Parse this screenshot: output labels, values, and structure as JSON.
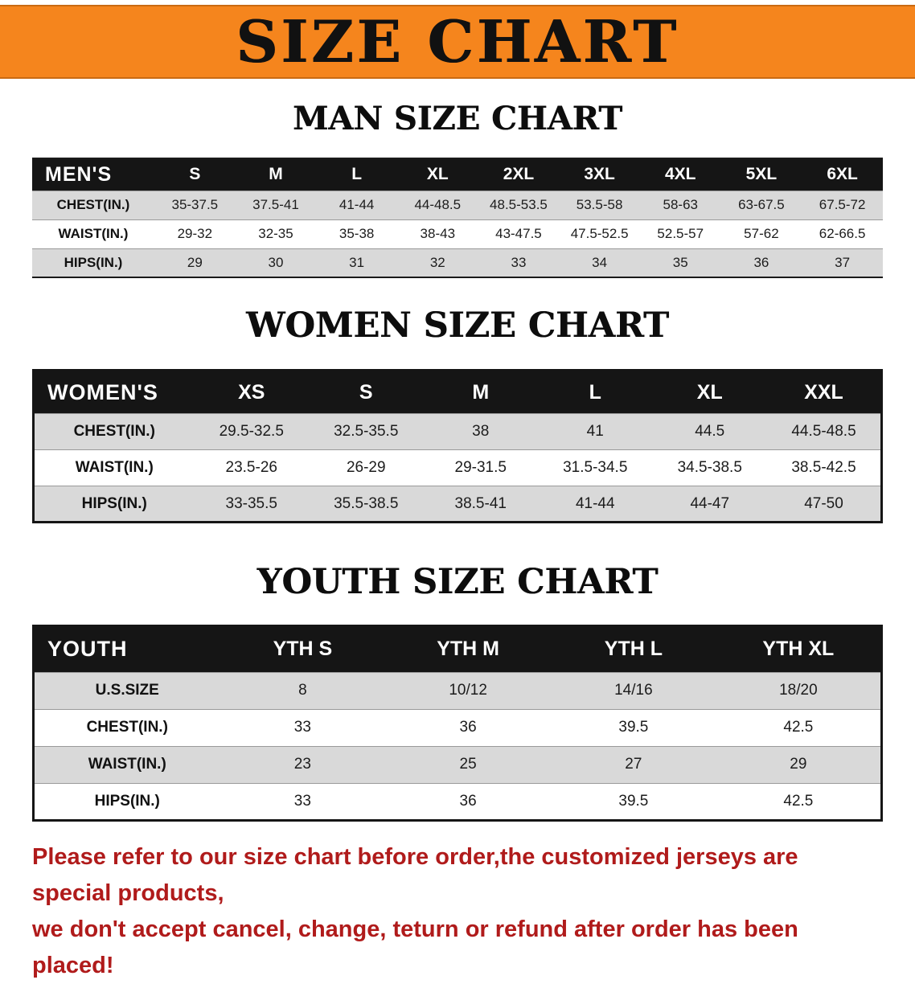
{
  "banner": {
    "title": "SIZE CHART"
  },
  "men": {
    "heading": "MAN SIZE CHART",
    "table": {
      "header": [
        "MEN'S",
        "S",
        "M",
        "L",
        "XL",
        "2XL",
        "3XL",
        "4XL",
        "5XL",
        "6XL"
      ],
      "rows": [
        [
          "CHEST(IN.)",
          "35-37.5",
          "37.5-41",
          "41-44",
          "44-48.5",
          "48.5-53.5",
          "53.5-58",
          "58-63",
          "63-67.5",
          "67.5-72"
        ],
        [
          "WAIST(IN.)",
          "29-32",
          "32-35",
          "35-38",
          "38-43",
          "43-47.5",
          "47.5-52.5",
          "52.5-57",
          "57-62",
          "62-66.5"
        ],
        [
          "HIPS(IN.)",
          "29",
          "30",
          "31",
          "32",
          "33",
          "34",
          "35",
          "36",
          "37"
        ]
      ]
    }
  },
  "women": {
    "heading": "WOMEN SIZE CHART",
    "table": {
      "header": [
        "WOMEN'S",
        "XS",
        "S",
        "M",
        "L",
        "XL",
        "XXL"
      ],
      "rows": [
        [
          "CHEST(IN.)",
          "29.5-32.5",
          "32.5-35.5",
          "38",
          "41",
          "44.5",
          "44.5-48.5"
        ],
        [
          "WAIST(IN.)",
          "23.5-26",
          "26-29",
          "29-31.5",
          "31.5-34.5",
          "34.5-38.5",
          "38.5-42.5"
        ],
        [
          "HIPS(IN.)",
          "33-35.5",
          "35.5-38.5",
          "38.5-41",
          "41-44",
          "44-47",
          "47-50"
        ]
      ]
    }
  },
  "youth": {
    "heading": "YOUTH SIZE CHART",
    "table": {
      "header": [
        "YOUTH",
        "YTH S",
        "YTH M",
        "YTH L",
        "YTH XL"
      ],
      "rows": [
        [
          "U.S.SIZE",
          "8",
          "10/12",
          "14/16",
          "18/20"
        ],
        [
          "CHEST(IN.)",
          "33",
          "36",
          "39.5",
          "42.5"
        ],
        [
          "WAIST(IN.)",
          "23",
          "25",
          "27",
          "29"
        ],
        [
          "HIPS(IN.)",
          "33",
          "36",
          "39.5",
          "42.5"
        ]
      ]
    }
  },
  "disclaimer": {
    "line1": "Please refer to our size chart before order,the customized jerseys are special products,",
    "line2": "we don't accept cancel, change, teturn or refund after order has been placed!"
  },
  "colors": {
    "banner_orange": "#f5851d",
    "header_black": "#151515",
    "row_gray": "#d9d9d9",
    "disclaimer_red": "#b01b1b"
  }
}
